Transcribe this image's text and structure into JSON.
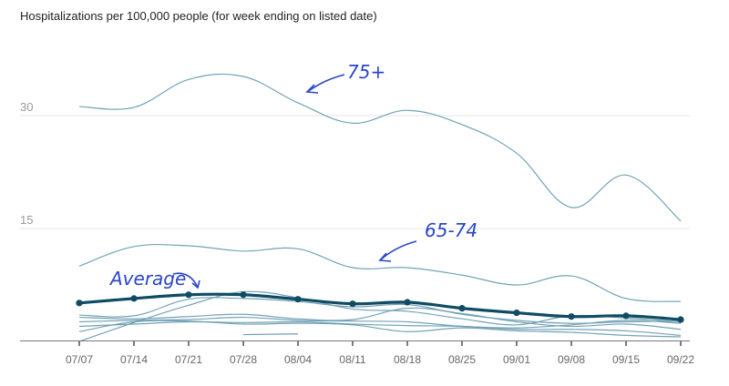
{
  "chart_data": {
    "type": "line",
    "title": "Hospitalizations per 100,000 people (for week ending on listed date)",
    "xlabel": "",
    "ylabel": "",
    "ylim": [
      0,
      36
    ],
    "yticks": [
      15,
      30
    ],
    "grid": true,
    "categories": [
      "07/07",
      "07/14",
      "07/21",
      "07/28",
      "08/04",
      "08/11",
      "08/18",
      "08/25",
      "09/01",
      "09/08",
      "09/15",
      "09/22"
    ],
    "series": [
      {
        "name": "75+",
        "emphasis": "normal",
        "values": [
          31.2,
          31.1,
          34.8,
          35.2,
          31.7,
          29.0,
          30.7,
          28.8,
          25.0,
          17.8,
          22.1,
          16.0
        ]
      },
      {
        "name": "65-74",
        "emphasis": "normal",
        "values": [
          10.0,
          12.6,
          12.7,
          12.0,
          12.3,
          9.8,
          9.8,
          8.8,
          7.5,
          8.7,
          5.7,
          5.3
        ]
      },
      {
        "name": "Average",
        "emphasis": "bold",
        "values": [
          5.1,
          5.7,
          6.2,
          6.2,
          5.6,
          5.0,
          5.2,
          4.4,
          3.8,
          3.3,
          3.4,
          2.9
        ]
      },
      {
        "name": "",
        "emphasis": "normal",
        "values": [
          0.0,
          2.5,
          4.8,
          6.6,
          5.8,
          4.3,
          4.0,
          3.0,
          2.2,
          3.4,
          3.1,
          2.6
        ]
      },
      {
        "name": "",
        "emphasis": "normal",
        "values": [
          3.5,
          3.4,
          5.6,
          5.7,
          5.3,
          4.6,
          4.9,
          3.6,
          2.8,
          2.4,
          2.6,
          2.7
        ]
      },
      {
        "name": "",
        "emphasis": "normal",
        "values": [
          3.2,
          3.0,
          3.3,
          3.6,
          3.0,
          2.9,
          4.4,
          3.7,
          2.6,
          2.0,
          2.3,
          1.6
        ]
      },
      {
        "name": "",
        "emphasis": "normal",
        "values": [
          2.6,
          2.8,
          2.9,
          3.2,
          2.8,
          2.7,
          2.6,
          2.0,
          1.8,
          2.2,
          2.8,
          2.4
        ]
      },
      {
        "name": "",
        "emphasis": "normal",
        "values": [
          2.0,
          2.3,
          2.6,
          2.5,
          2.6,
          2.3,
          2.1,
          2.0,
          1.6,
          1.6,
          1.4,
          0.8
        ]
      },
      {
        "name": "",
        "emphasis": "normal",
        "values": [
          1.3,
          2.6,
          2.7,
          2.3,
          2.4,
          2.2,
          1.3,
          1.8,
          1.4,
          1.2,
          0.8,
          0.6
        ]
      }
    ],
    "partial_series": [
      {
        "name": "",
        "from": "07/28",
        "to": "08/04",
        "values": [
          0.9,
          1.0
        ]
      }
    ],
    "annotations": [
      {
        "text": "75+",
        "target_series": "75+",
        "near": "08/04"
      },
      {
        "text": "65-74",
        "target_series": "65-74",
        "near": "08/11"
      },
      {
        "text": "Average",
        "target_series": "Average",
        "near": "07/21"
      }
    ],
    "colors": {
      "line": "#6b9db3",
      "average": "#0f4c63",
      "annotation": "#2a45c8",
      "grid": "#e6e6e6",
      "axis": "#555555"
    }
  }
}
